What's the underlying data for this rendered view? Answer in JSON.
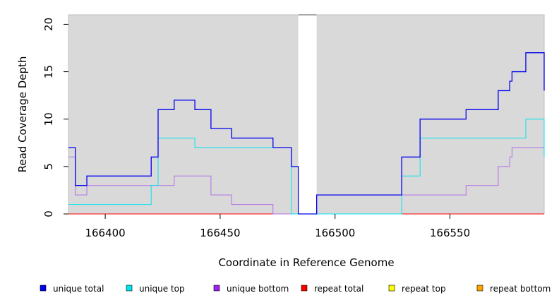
{
  "chart_data": {
    "type": "line",
    "line_style": "step",
    "title": "",
    "xlabel": "Coordinate in Reference Genome",
    "ylabel": "Read Coverage Depth",
    "xlim": [
      166384,
      166591
    ],
    "ylim": [
      0,
      21
    ],
    "x_ticks": [
      166400,
      166450,
      166500,
      166550
    ],
    "y_ticks": [
      0,
      5,
      10,
      15,
      20
    ],
    "x_tick_labels": [
      "166400",
      "166450",
      "166500",
      "166550"
    ],
    "y_tick_labels": [
      "0",
      "5",
      "10",
      "15",
      "20"
    ],
    "plot_background": "#d9d9d9",
    "gaps": [
      [
        166484,
        166492
      ]
    ],
    "legend_position": "bottom",
    "series": [
      {
        "name": "unique total",
        "color": "#0000ee",
        "points": [
          [
            166384,
            7
          ],
          [
            166387,
            7
          ],
          [
            166387,
            3
          ],
          [
            166392,
            3
          ],
          [
            166392,
            4
          ],
          [
            166420,
            4
          ],
          [
            166420,
            6
          ],
          [
            166423,
            6
          ],
          [
            166423,
            11
          ],
          [
            166430,
            11
          ],
          [
            166430,
            12
          ],
          [
            166439,
            12
          ],
          [
            166439,
            11
          ],
          [
            166446,
            11
          ],
          [
            166446,
            9
          ],
          [
            166455,
            9
          ],
          [
            166455,
            8
          ],
          [
            166473,
            8
          ],
          [
            166473,
            7
          ],
          [
            166481,
            7
          ],
          [
            166481,
            5
          ],
          [
            166484,
            5
          ],
          [
            166484,
            0
          ],
          [
            166492,
            0
          ],
          [
            166492,
            2
          ],
          [
            166529,
            2
          ],
          [
            166529,
            6
          ],
          [
            166537,
            6
          ],
          [
            166537,
            10
          ],
          [
            166557,
            10
          ],
          [
            166557,
            11
          ],
          [
            166571,
            11
          ],
          [
            166571,
            13
          ],
          [
            166576,
            13
          ],
          [
            166576,
            14
          ],
          [
            166577,
            14
          ],
          [
            166577,
            15
          ],
          [
            166583,
            15
          ],
          [
            166583,
            17
          ],
          [
            166591,
            17
          ],
          [
            166591,
            13
          ]
        ]
      },
      {
        "name": "unique top",
        "color": "#00e5ee",
        "points": [
          [
            166384,
            1
          ],
          [
            166420,
            1
          ],
          [
            166420,
            3
          ],
          [
            166423,
            3
          ],
          [
            166423,
            8
          ],
          [
            166439,
            8
          ],
          [
            166439,
            7
          ],
          [
            166481,
            7
          ],
          [
            166481,
            0
          ],
          [
            166529,
            0
          ],
          [
            166529,
            4
          ],
          [
            166537,
            4
          ],
          [
            166537,
            8
          ],
          [
            166583,
            8
          ],
          [
            166583,
            10
          ],
          [
            166591,
            10
          ],
          [
            166591,
            6
          ]
        ]
      },
      {
        "name": "unique bottom",
        "color": "#b36ee8",
        "points": [
          [
            166384,
            6
          ],
          [
            166387,
            6
          ],
          [
            166387,
            2
          ],
          [
            166392,
            2
          ],
          [
            166392,
            3
          ],
          [
            166430,
            3
          ],
          [
            166430,
            4
          ],
          [
            166446,
            4
          ],
          [
            166446,
            2
          ],
          [
            166455,
            2
          ],
          [
            166455,
            1
          ],
          [
            166473,
            1
          ],
          [
            166473,
            0
          ],
          [
            166484,
            0
          ],
          [
            166492,
            0
          ],
          [
            166492,
            2
          ],
          [
            166557,
            2
          ],
          [
            166557,
            3
          ],
          [
            166571,
            3
          ],
          [
            166571,
            5
          ],
          [
            166576,
            5
          ],
          [
            166576,
            6
          ],
          [
            166577,
            6
          ],
          [
            166577,
            7
          ],
          [
            166591,
            7
          ],
          [
            166591,
            6
          ]
        ]
      },
      {
        "name": "repeat total",
        "color": "#ff0000",
        "points": [
          [
            166384,
            0
          ],
          [
            166484,
            0
          ],
          [
            166492,
            0
          ],
          [
            166591,
            0
          ]
        ]
      },
      {
        "name": "repeat top",
        "color": "#ffff00",
        "points": [
          [
            166384,
            0
          ],
          [
            166484,
            0
          ],
          [
            166492,
            0
          ],
          [
            166591,
            0
          ]
        ]
      },
      {
        "name": "repeat bottom",
        "color": "#ffa500",
        "points": [
          [
            166384,
            0
          ],
          [
            166484,
            0
          ],
          [
            166492,
            0
          ],
          [
            166591,
            0
          ]
        ]
      }
    ],
    "legend": [
      {
        "label": "unique total",
        "color": "#0000ee"
      },
      {
        "label": "unique top",
        "color": "#00e5ee"
      },
      {
        "label": "unique bottom",
        "color": "#a020f0"
      },
      {
        "label": "repeat total",
        "color": "#ff0000"
      },
      {
        "label": "repeat top",
        "color": "#ffff00"
      },
      {
        "label": "repeat bottom",
        "color": "#ffa500"
      }
    ]
  }
}
